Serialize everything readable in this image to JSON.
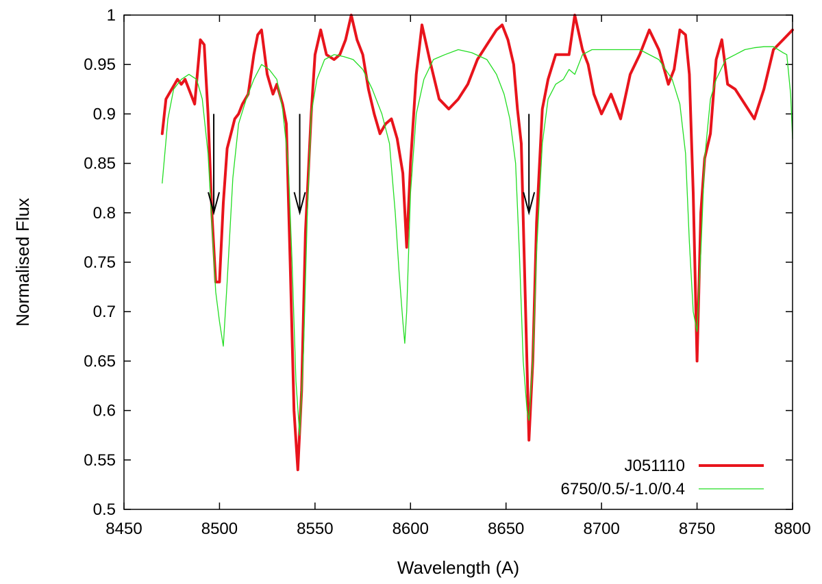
{
  "chart_data": {
    "type": "line",
    "title": "",
    "xlabel": "Wavelength (A)",
    "ylabel": "Normalised Flux",
    "xlim": [
      8450,
      8800
    ],
    "ylim": [
      0.5,
      1.0
    ],
    "xticks": [
      "8450",
      "8500",
      "8550",
      "8600",
      "8650",
      "8700",
      "8750",
      "8800"
    ],
    "yticks": [
      "0.5",
      "0.55",
      "0.6",
      "0.65",
      "0.7",
      "0.75",
      "0.8",
      "0.85",
      "0.9",
      "0.95",
      "1"
    ],
    "grid": false,
    "legend_position": "bottom-right",
    "series": [
      {
        "name": "J051110",
        "color": "#e8141c",
        "x": [
          8470,
          8472,
          8475,
          8478,
          8480,
          8482,
          8484,
          8487,
          8490,
          8492,
          8494,
          8496,
          8498,
          8500,
          8502,
          8504,
          8506,
          8508,
          8510,
          8512,
          8515,
          8518,
          8520,
          8522,
          8525,
          8528,
          8530,
          8533,
          8535,
          8537,
          8539,
          8541,
          8543,
          8545,
          8548,
          8550,
          8553,
          8556,
          8560,
          8563,
          8566,
          8569,
          8572,
          8575,
          8578,
          8581,
          8584,
          8587,
          8590,
          8593,
          8596,
          8598,
          8600,
          8603,
          8606,
          8610,
          8615,
          8620,
          8625,
          8630,
          8635,
          8640,
          8645,
          8648,
          8651,
          8654,
          8656,
          8658,
          8660,
          8662,
          8664,
          8666,
          8669,
          8672,
          8676,
          8680,
          8683,
          8686,
          8690,
          8693,
          8696,
          8700,
          8705,
          8710,
          8715,
          8720,
          8725,
          8730,
          8735,
          8738,
          8741,
          8744,
          8746,
          8748,
          8750,
          8752,
          8754,
          8757,
          8760,
          8763,
          8766,
          8770,
          8775,
          8780,
          8785,
          8790,
          8795,
          8800
        ],
        "y": [
          0.88,
          0.915,
          0.925,
          0.935,
          0.93,
          0.935,
          0.925,
          0.91,
          0.975,
          0.97,
          0.9,
          0.8,
          0.73,
          0.73,
          0.81,
          0.865,
          0.88,
          0.895,
          0.9,
          0.91,
          0.92,
          0.96,
          0.98,
          0.985,
          0.94,
          0.92,
          0.93,
          0.91,
          0.89,
          0.75,
          0.6,
          0.54,
          0.62,
          0.78,
          0.9,
          0.96,
          0.985,
          0.96,
          0.955,
          0.96,
          0.975,
          1.0,
          0.975,
          0.96,
          0.925,
          0.9,
          0.88,
          0.89,
          0.895,
          0.875,
          0.84,
          0.765,
          0.85,
          0.94,
          0.99,
          0.955,
          0.915,
          0.905,
          0.915,
          0.93,
          0.955,
          0.97,
          0.985,
          0.99,
          0.975,
          0.95,
          0.905,
          0.87,
          0.72,
          0.57,
          0.65,
          0.79,
          0.905,
          0.935,
          0.96,
          0.96,
          0.96,
          1.0,
          0.965,
          0.95,
          0.92,
          0.9,
          0.92,
          0.895,
          0.94,
          0.96,
          0.985,
          0.965,
          0.93,
          0.945,
          0.985,
          0.98,
          0.94,
          0.82,
          0.65,
          0.8,
          0.855,
          0.88,
          0.955,
          0.975,
          0.93,
          0.925,
          0.91,
          0.895,
          0.925,
          0.965,
          0.975,
          0.985
        ]
      },
      {
        "name": "6750/0.5/-1.0/0.4",
        "color": "#22dd22",
        "x": [
          8470,
          8473,
          8476,
          8480,
          8484,
          8488,
          8491,
          8494,
          8496,
          8498,
          8500,
          8502,
          8504,
          8507,
          8510,
          8514,
          8518,
          8522,
          8526,
          8530,
          8533,
          8536,
          8538,
          8540,
          8542,
          8544,
          8546,
          8548,
          8551,
          8555,
          8560,
          8565,
          8570,
          8575,
          8580,
          8585,
          8589,
          8592,
          8594,
          8596,
          8597,
          8598,
          8600,
          8603,
          8607,
          8612,
          8618,
          8625,
          8632,
          8640,
          8645,
          8649,
          8652,
          8655,
          8657,
          8659,
          8661,
          8662,
          8664,
          8666,
          8669,
          8672,
          8676,
          8680,
          8683,
          8686,
          8690,
          8695,
          8700,
          8710,
          8720,
          8730,
          8737,
          8741,
          8744,
          8746,
          8748,
          8750,
          8752,
          8754,
          8757,
          8760,
          8765,
          8770,
          8775,
          8780,
          8785,
          8790,
          8795,
          8797,
          8799,
          8800
        ],
        "y": [
          0.83,
          0.895,
          0.925,
          0.935,
          0.94,
          0.935,
          0.915,
          0.86,
          0.79,
          0.72,
          0.69,
          0.665,
          0.73,
          0.835,
          0.89,
          0.915,
          0.935,
          0.95,
          0.945,
          0.935,
          0.905,
          0.85,
          0.75,
          0.63,
          0.575,
          0.66,
          0.8,
          0.9,
          0.935,
          0.955,
          0.96,
          0.958,
          0.955,
          0.945,
          0.925,
          0.9,
          0.87,
          0.8,
          0.74,
          0.69,
          0.668,
          0.7,
          0.82,
          0.9,
          0.935,
          0.955,
          0.96,
          0.965,
          0.962,
          0.955,
          0.94,
          0.92,
          0.895,
          0.85,
          0.76,
          0.65,
          0.6,
          0.59,
          0.65,
          0.76,
          0.87,
          0.915,
          0.93,
          0.935,
          0.945,
          0.94,
          0.96,
          0.965,
          0.965,
          0.965,
          0.965,
          0.955,
          0.935,
          0.91,
          0.86,
          0.77,
          0.7,
          0.68,
          0.76,
          0.855,
          0.915,
          0.935,
          0.955,
          0.96,
          0.965,
          0.967,
          0.968,
          0.968,
          0.962,
          0.96,
          0.92,
          0.875
        ]
      }
    ],
    "annotations": [
      {
        "type": "arrow",
        "x": 8497,
        "y_from": 0.9,
        "y_to": 0.8
      },
      {
        "type": "arrow",
        "x": 8542,
        "y_from": 0.9,
        "y_to": 0.8
      },
      {
        "type": "arrow",
        "x": 8662,
        "y_from": 0.9,
        "y_to": 0.8
      }
    ]
  }
}
